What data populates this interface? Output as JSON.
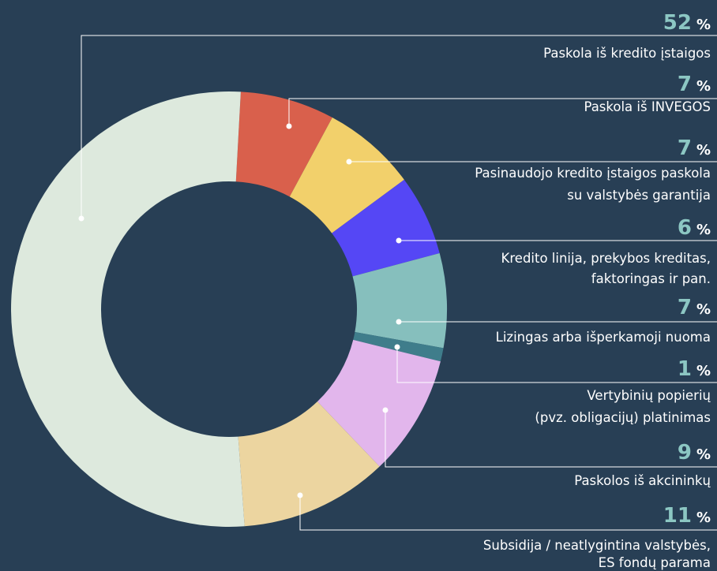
{
  "chart_data": {
    "type": "donut",
    "unit": "%",
    "categories": [
      [
        "Paskola iš kredito įstaigos"
      ],
      [
        "Paskola iš INVEGOS"
      ],
      [
        "Pasinaudojo kredito įstaigos paskola",
        "su valstybės garantija"
      ],
      [
        "Kredito linija, prekybos kreditas,",
        "faktoringas ir pan."
      ],
      [
        "Lizingas arba išperkamoji nuoma"
      ],
      [
        "Vertybinių popierių",
        "(pvz. obligacijų) platinimas"
      ],
      [
        "Paskolos iš akcininkų"
      ],
      [
        "Subsidija / neatlygintina valstybės,",
        "ES fondų parama"
      ]
    ],
    "values": [
      52,
      7,
      7,
      6,
      7,
      1,
      9,
      11
    ],
    "colors": [
      "#dde9dd",
      "#d9604c",
      "#f2d06b",
      "#5547f5",
      "#86bfbd",
      "#3f7d8b",
      "#e2b6ec",
      "#ecd5a0"
    ]
  }
}
